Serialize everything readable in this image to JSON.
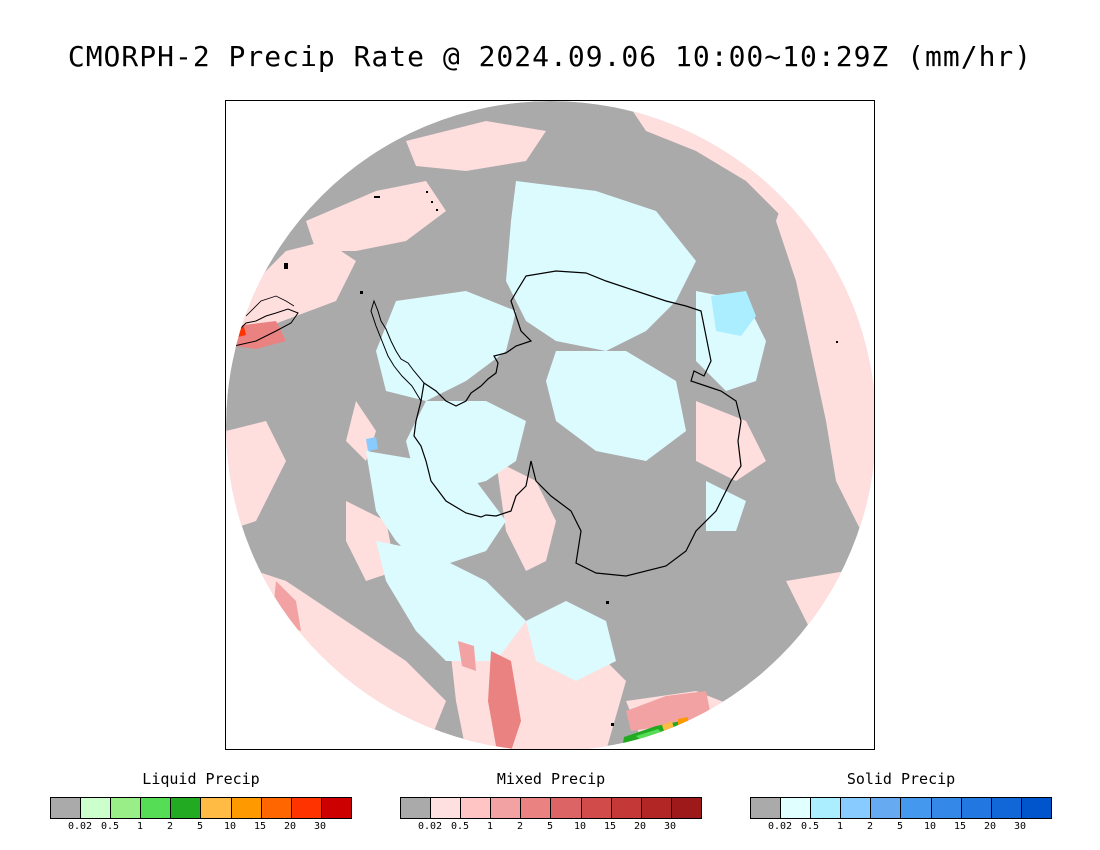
{
  "title": "CMORPH-2 Precip Rate @ 2024.09.06 10:00~10:29Z (mm/hr)",
  "map": {
    "projection": "south-polar-stereographic",
    "background_no_precip_color": "#aaaaaa",
    "coastline_color": "#000000",
    "frame_color": "#000000"
  },
  "legends": [
    {
      "title": "Liquid Precip",
      "colors": [
        "#aaaaaa",
        "#ccffcc",
        "#99ee88",
        "#55dd55",
        "#22aa22",
        "#ffbb44",
        "#ff9900",
        "#ff6600",
        "#ff3300",
        "#cc0000"
      ],
      "ticks": [
        "0.02",
        "0.5",
        "1",
        "2",
        "5",
        "10",
        "15",
        "20",
        "30"
      ]
    },
    {
      "title": "Mixed Precip",
      "colors": [
        "#aaaaaa",
        "#ffe0e0",
        "#ffc4c4",
        "#f2a2a2",
        "#ea8282",
        "#dd6464",
        "#d24b4b",
        "#c43838",
        "#b22626",
        "#9e1a1a"
      ],
      "ticks": [
        "0.02",
        "0.5",
        "1",
        "2",
        "5",
        "10",
        "15",
        "20",
        "30"
      ]
    },
    {
      "title": "Solid Precip",
      "colors": [
        "#aaaaaa",
        "#e0ffff",
        "#aaeeff",
        "#88ccff",
        "#66aaf2",
        "#4499ee",
        "#3388e8",
        "#2277e0",
        "#1166d8",
        "#0055cc"
      ],
      "ticks": [
        "0.02",
        "0.5",
        "1",
        "2",
        "5",
        "10",
        "15",
        "20",
        "30"
      ]
    }
  ]
}
